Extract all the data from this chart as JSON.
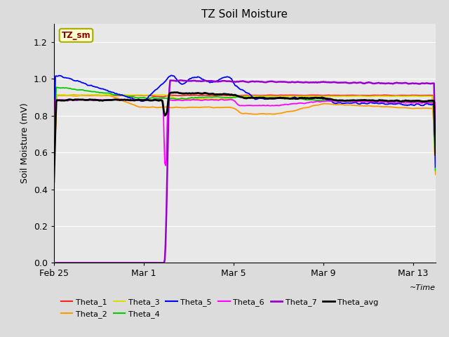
{
  "title": "TZ Soil Moisture",
  "ylabel": "Soil Moisture (mV)",
  "xlabel": "~Time",
  "ylim": [
    0.0,
    1.3
  ],
  "yticks": [
    0.0,
    0.2,
    0.4,
    0.6,
    0.8,
    1.0,
    1.2
  ],
  "fig_bg": "#dcdcdc",
  "plot_bg": "#e8e8e8",
  "grid_color": "#ffffff",
  "legend_label": "TZ_sm",
  "legend_label_color": "#8b0000",
  "legend_label_bg": "#ffffcc",
  "legend_label_edge": "#aaaa00",
  "series_colors": {
    "Theta_1": "#ff2222",
    "Theta_2": "#ff9900",
    "Theta_3": "#dddd00",
    "Theta_4": "#00cc00",
    "Theta_5": "#0000ff",
    "Theta_6": "#ff00ff",
    "Theta_7": "#9900cc",
    "Theta_avg": "#000000"
  },
  "x_tick_labels": [
    "Feb 25",
    "Mar 1",
    "Mar 5",
    "Mar 9",
    "Mar 13"
  ],
  "x_tick_positions": [
    0,
    4,
    8,
    12,
    16
  ]
}
